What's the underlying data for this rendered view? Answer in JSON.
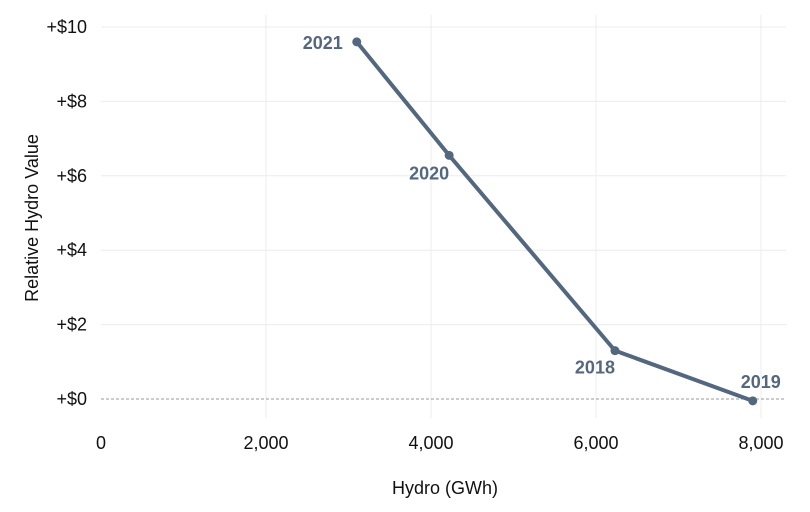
{
  "chart_data": {
    "type": "line",
    "title": "",
    "xlabel": "Hydro (GWh)",
    "ylabel": "Relative Hydro Value",
    "xlim": [
      0,
      8000
    ],
    "ylim": [
      0,
      10
    ],
    "x_ticks": [
      0,
      2000,
      4000,
      6000,
      8000
    ],
    "x_tick_labels": [
      "0",
      "2,000",
      "4,000",
      "6,000",
      "8,000"
    ],
    "y_ticks": [
      0,
      2,
      4,
      6,
      8,
      10
    ],
    "y_tick_labels": [
      "+$0",
      "+$2",
      "+$4",
      "+$6",
      "+$8",
      "+$10"
    ],
    "grid": true,
    "zero_line": "dashed",
    "series": [
      {
        "color": "#53687e",
        "points": [
          {
            "label": "2021",
            "x": 3100,
            "y": 9.6
          },
          {
            "label": "2020",
            "x": 4220,
            "y": 6.55
          },
          {
            "label": "2018",
            "x": 6230,
            "y": 1.3
          },
          {
            "label": "2019",
            "x": 7900,
            "y": -0.05
          }
        ]
      }
    ]
  }
}
